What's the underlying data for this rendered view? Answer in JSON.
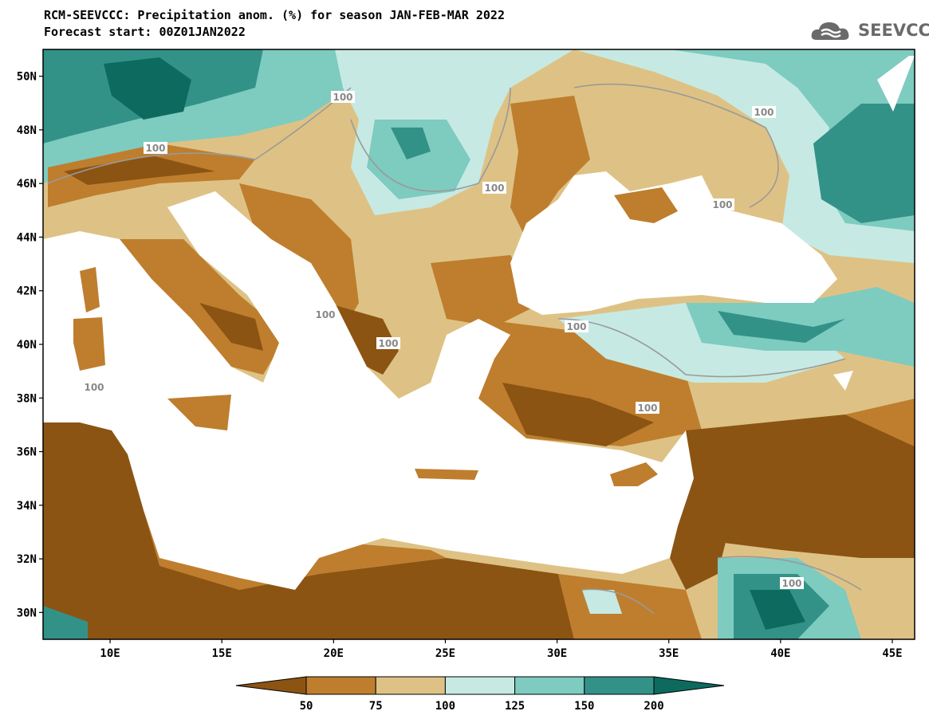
{
  "header": {
    "title_line1": "RCM-SEEVCCC: Precipitation anom. (%) for season JAN-FEB-MAR 2022",
    "title_line2": "Forecast start: 00Z01JAN2022"
  },
  "logo": {
    "text": "SEEVCCC",
    "icon": "cloud-icon"
  },
  "map": {
    "lat_labels": [
      "50N",
      "48N",
      "46N",
      "44N",
      "42N",
      "40N",
      "38N",
      "36N",
      "34N",
      "32N",
      "30N"
    ],
    "lat_values": [
      50,
      48,
      46,
      44,
      42,
      40,
      38,
      36,
      34,
      32,
      30
    ],
    "lon_labels": [
      "10E",
      "15E",
      "20E",
      "25E",
      "30E",
      "35E",
      "40E",
      "45E"
    ],
    "lon_values": [
      10,
      15,
      20,
      25,
      30,
      35,
      40,
      45
    ],
    "lon_range": [
      7,
      46
    ],
    "lat_range": [
      29,
      51
    ],
    "contour_label": "100",
    "contour_label_count": 11
  },
  "colorbar": {
    "ticks": [
      "50",
      "75",
      "100",
      "125",
      "150",
      "200"
    ],
    "colors": [
      "#8B5413",
      "#BE7E2E",
      "#DEC285",
      "#C6EAE3",
      "#7ECBC0",
      "#339288",
      "#0C6B5E"
    ]
  },
  "palette": {
    "land_dry_strong": "#8B5413",
    "land_dry": "#BE7E2E",
    "land_dry_light": "#DEC285",
    "wet_light": "#C6EAE3",
    "wet": "#7ECBC0",
    "wet_strong": "#339288",
    "wet_extreme": "#0C6B5E",
    "sea": "#FFFFFF"
  }
}
